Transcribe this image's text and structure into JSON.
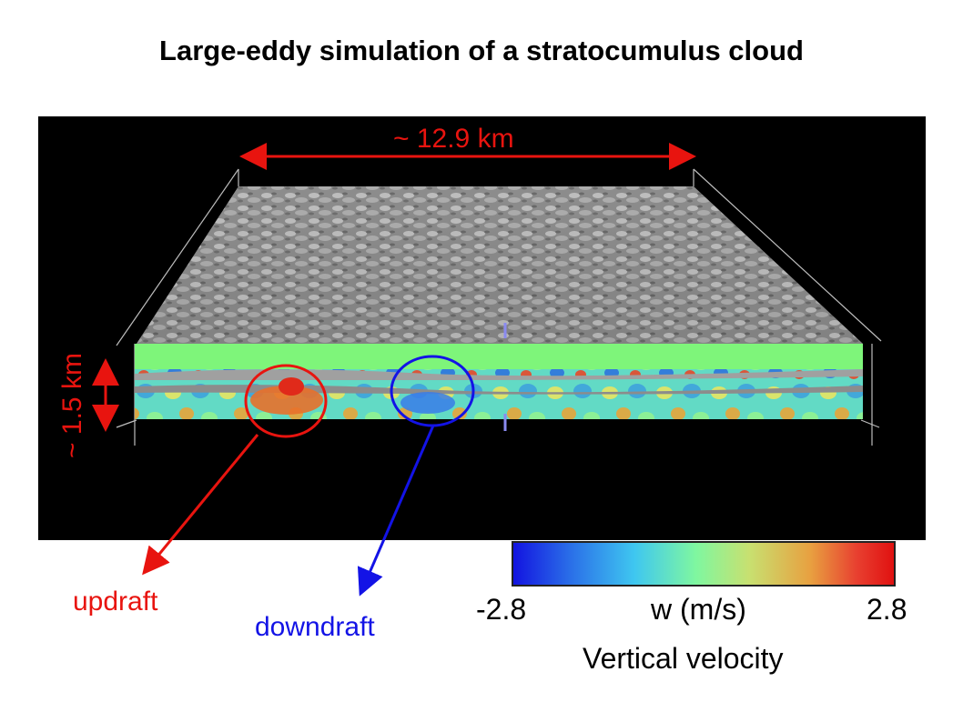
{
  "title": "Large-eddy simulation of a stratocumulus cloud",
  "annotations": {
    "domain_width": "~ 12.9 km",
    "domain_height": "~ 1.5 km",
    "updraft": "updraft",
    "downdraft": "downdraft"
  },
  "colorbar": {
    "min": "-2.8",
    "unit": "w (m/s)",
    "max": "2.8",
    "title": "Vertical velocity",
    "colors": [
      "#1212e0",
      "#2a6ee8",
      "#3fc7f0",
      "#7ff7a0",
      "#c8e070",
      "#e8a040",
      "#e84030",
      "#e01010"
    ]
  },
  "colors": {
    "updraft": "#e8140f",
    "downdraft": "#1313e6",
    "background_panel": "#000000",
    "slab_face": "#7ef57a"
  }
}
